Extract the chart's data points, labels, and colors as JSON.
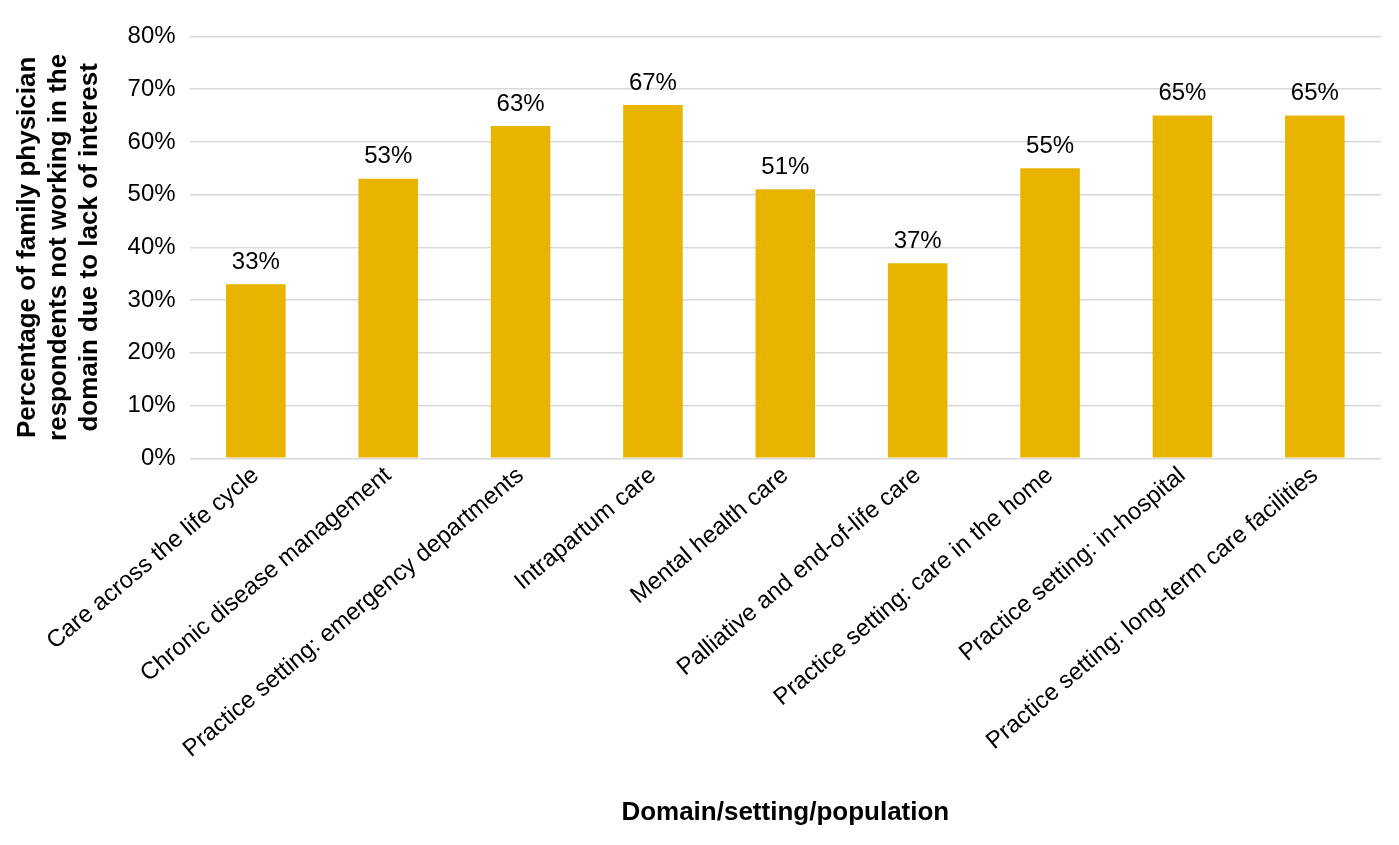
{
  "chart_data": {
    "type": "bar",
    "xlabel": "Domain/setting/population",
    "ylabel": "Percentage of family physician respondents not working in the domain due to lack of interest",
    "categories": [
      "Care across the life cycle",
      "Chronic disease management",
      "Practice setting: emergency departments",
      "Intrapartum care",
      "Mental health care",
      "Palliative and end-of-life care",
      "Practice setting: care in the home",
      "Practice setting: in-hospital",
      "Practice setting: long-term care facilities"
    ],
    "values": [
      33,
      53,
      63,
      67,
      51,
      37,
      55,
      65,
      65
    ],
    "value_labels": [
      "33%",
      "53%",
      "63%",
      "67%",
      "51%",
      "37%",
      "55%",
      "65%",
      "65%"
    ],
    "color": "#e9b400",
    "ylim": [
      0,
      80
    ],
    "yticks": [
      {
        "value": 0,
        "label": "0%"
      },
      {
        "value": 10,
        "label": "10%"
      },
      {
        "value": 20,
        "label": "20%"
      },
      {
        "value": 30,
        "label": "30%"
      },
      {
        "value": 40,
        "label": "40%"
      },
      {
        "value": 50,
        "label": "50%"
      },
      {
        "value": 60,
        "label": "60%"
      },
      {
        "value": 70,
        "label": "70%"
      },
      {
        "value": 80,
        "label": "80%"
      }
    ],
    "grid": "y",
    "legend": false
  }
}
